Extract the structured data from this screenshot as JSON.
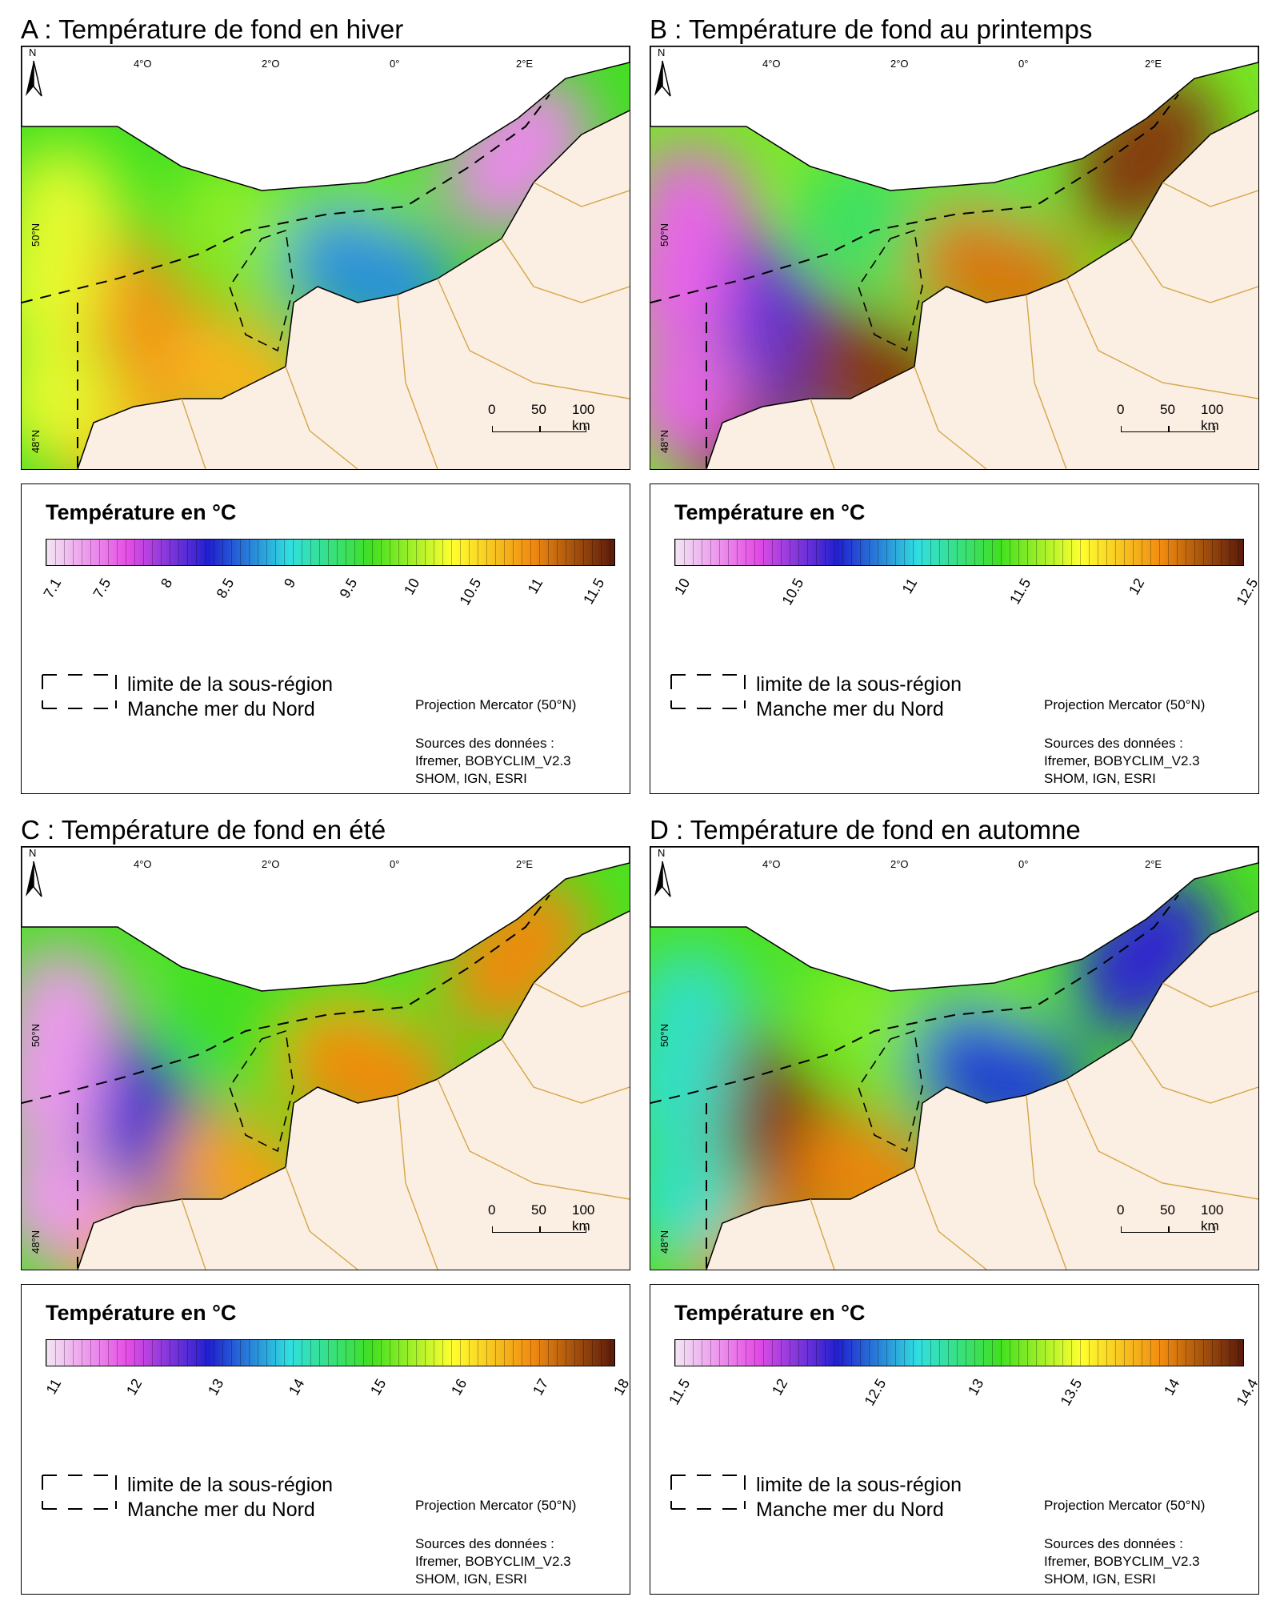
{
  "panels": [
    {
      "title": "A : Température de fond en hiver",
      "legend_title": "Température en °C",
      "ticks": [
        "7.1",
        "7.5",
        "8",
        "8.5",
        "9",
        "9.5",
        "10",
        "10.5",
        "11",
        "11.5"
      ],
      "range": [
        7.1,
        11.7
      ],
      "hotspots": [
        {
          "label": "open-channel",
          "value": 10.0
        },
        {
          "label": "north-sea-entrance",
          "value": 7.5
        },
        {
          "label": "normandy-coast",
          "value": 8.8
        },
        {
          "label": "west-channel",
          "value": 11.0
        },
        {
          "label": "brittany-coast",
          "value": 10.8
        },
        {
          "label": "atlantic-shelf",
          "value": 10.3
        }
      ]
    },
    {
      "title": "B : Température de fond au printemps",
      "legend_title": "Température en °C",
      "ticks": [
        "10",
        "10.5",
        "11",
        "11.5",
        "12",
        "12.5"
      ],
      "range": [
        10.0,
        12.5
      ],
      "hotspots": [
        {
          "label": "open-channel",
          "value": 11.3
        },
        {
          "label": "north-sea-entrance",
          "value": 12.4
        },
        {
          "label": "normandy-coast",
          "value": 12.2
        },
        {
          "label": "west-channel",
          "value": 10.6
        },
        {
          "label": "brittany-coast",
          "value": 12.4
        },
        {
          "label": "atlantic-shelf",
          "value": 10.3
        }
      ]
    },
    {
      "title": "C : Température de fond en été",
      "legend_title": "Température en °C",
      "ticks": [
        "11",
        "12",
        "13",
        "14",
        "15",
        "16",
        "17",
        "18"
      ],
      "range": [
        11.0,
        18.0
      ],
      "hotspots": [
        {
          "label": "open-channel",
          "value": 15.0
        },
        {
          "label": "north-sea-entrance",
          "value": 17.0
        },
        {
          "label": "normandy-coast",
          "value": 17.0
        },
        {
          "label": "west-channel",
          "value": 13.0
        },
        {
          "label": "brittany-coast",
          "value": 16.8
        },
        {
          "label": "atlantic-shelf",
          "value": 11.5
        }
      ]
    },
    {
      "title": "D : Température de fond en automne",
      "legend_title": "Température en °C",
      "ticks": [
        "11.5",
        "12",
        "12.5",
        "13",
        "13.5",
        "14",
        "14.4"
      ],
      "range": [
        11.5,
        14.4
      ],
      "hotspots": [
        {
          "label": "open-channel",
          "value": 13.3
        },
        {
          "label": "north-sea-entrance",
          "value": 12.3
        },
        {
          "label": "normandy-coast",
          "value": 12.4
        },
        {
          "label": "west-channel",
          "value": 14.3
        },
        {
          "label": "brittany-coast",
          "value": 14.0
        },
        {
          "label": "atlantic-shelf",
          "value": 12.8
        }
      ]
    }
  ],
  "graticule": {
    "lon_labels": [
      "4°O",
      "2°O",
      "0°",
      "2°E"
    ],
    "lat_labels": [
      "50°N",
      "48°N"
    ]
  },
  "north_label": "N",
  "scale": {
    "labels": [
      "0",
      "50",
      "100 km"
    ]
  },
  "legend": {
    "limit_line1": "limite de la sous-région",
    "limit_line2": "Manche mer du Nord",
    "projection": "Projection Mercator (50°N)",
    "source_line1": "Sources des données :",
    "source_line2": "Ifremer, BOBYCLIM_V2.3",
    "source_line3": "SHOM, IGN, ESRI"
  },
  "colors": {
    "land": "#fbeee2",
    "uk_land": "#ffffff",
    "border": "#d4a64a",
    "ramp": [
      "#f3e6f3",
      "#e64de6",
      "#2020d0",
      "#30e0e0",
      "#40e020",
      "#ffff30",
      "#f08a10",
      "#5a1a0a"
    ]
  }
}
